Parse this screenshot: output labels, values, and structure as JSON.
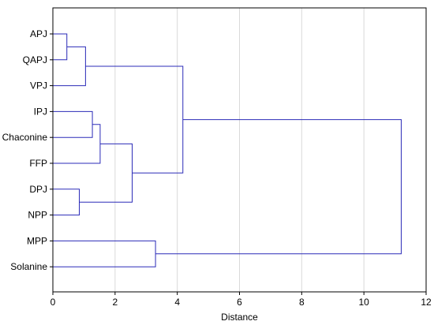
{
  "chart_data": {
    "type": "dendrogram",
    "xlabel": "Distance",
    "xlim": [
      0,
      12
    ],
    "xticks": [
      0,
      2,
      4,
      6,
      8,
      10,
      12
    ],
    "grid": "vertical",
    "colors": {
      "link": "#2b2bb8",
      "grid": "#d9d9d9",
      "frame": "#000000"
    },
    "leaves": [
      "APJ",
      "QAPJ",
      "VPJ",
      "IPJ",
      "Chaconine",
      "FFP",
      "DPJ",
      "NPP",
      "MPP",
      "Solanine"
    ],
    "merges": [
      {
        "a": "APJ",
        "b": "QAPJ",
        "height": 0.45,
        "id": "c1"
      },
      {
        "a": "c1",
        "b": "VPJ",
        "height": 1.05,
        "id": "c2"
      },
      {
        "a": "IPJ",
        "b": "Chaconine",
        "height": 1.27,
        "id": "c3"
      },
      {
        "a": "c3",
        "b": "FFP",
        "height": 1.52,
        "id": "c4"
      },
      {
        "a": "DPJ",
        "b": "NPP",
        "height": 0.85,
        "id": "c5"
      },
      {
        "a": "c4",
        "b": "c5",
        "height": 2.55,
        "id": "c6"
      },
      {
        "a": "c2",
        "b": "c6",
        "height": 4.18,
        "id": "c7"
      },
      {
        "a": "MPP",
        "b": "Solanine",
        "height": 3.3,
        "id": "c8"
      },
      {
        "a": "c7",
        "b": "c8",
        "height": 11.2,
        "id": "c9"
      }
    ]
  }
}
